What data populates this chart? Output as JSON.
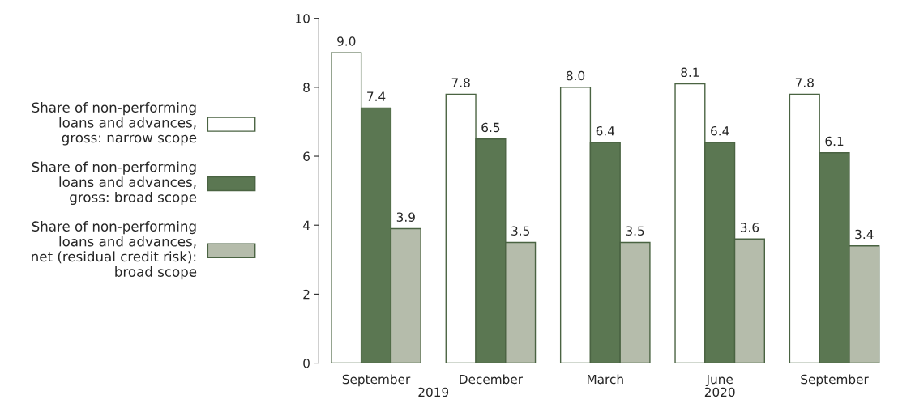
{
  "chart_data": {
    "type": "bar",
    "categories": [
      "September",
      "December",
      "March",
      "June",
      "September"
    ],
    "series": [
      {
        "name": "Share of non-performing\nloans and advances,\ngross: narrow scope",
        "color": "#ffffff",
        "values": [
          9.0,
          7.8,
          8.0,
          8.1,
          7.8
        ],
        "value_labels": [
          "9.0",
          "7.8",
          "8.0",
          "8.1",
          "7.8"
        ]
      },
      {
        "name": "Share of non-performing\nloans and advances,\ngross: broad scope",
        "color": "#5b7752",
        "values": [
          7.4,
          6.5,
          6.4,
          6.4,
          6.1
        ],
        "value_labels": [
          "7.4",
          "6.5",
          "6.4",
          "6.4",
          "6.1"
        ]
      },
      {
        "name": "Share of non-performing\nloans and advances,\nnet (residual credit risk):\nbroad scope",
        "color": "#b5bcab",
        "values": [
          3.9,
          3.5,
          3.5,
          3.6,
          3.4
        ],
        "value_labels": [
          "3.9",
          "3.5",
          "3.5",
          "3.6",
          "3.4"
        ]
      }
    ],
    "annotations": [
      "2019",
      "2020"
    ],
    "ylim": [
      0,
      10
    ],
    "yticks": [
      0,
      2,
      4,
      6,
      8,
      10
    ],
    "grid": false,
    "legend": "left"
  }
}
